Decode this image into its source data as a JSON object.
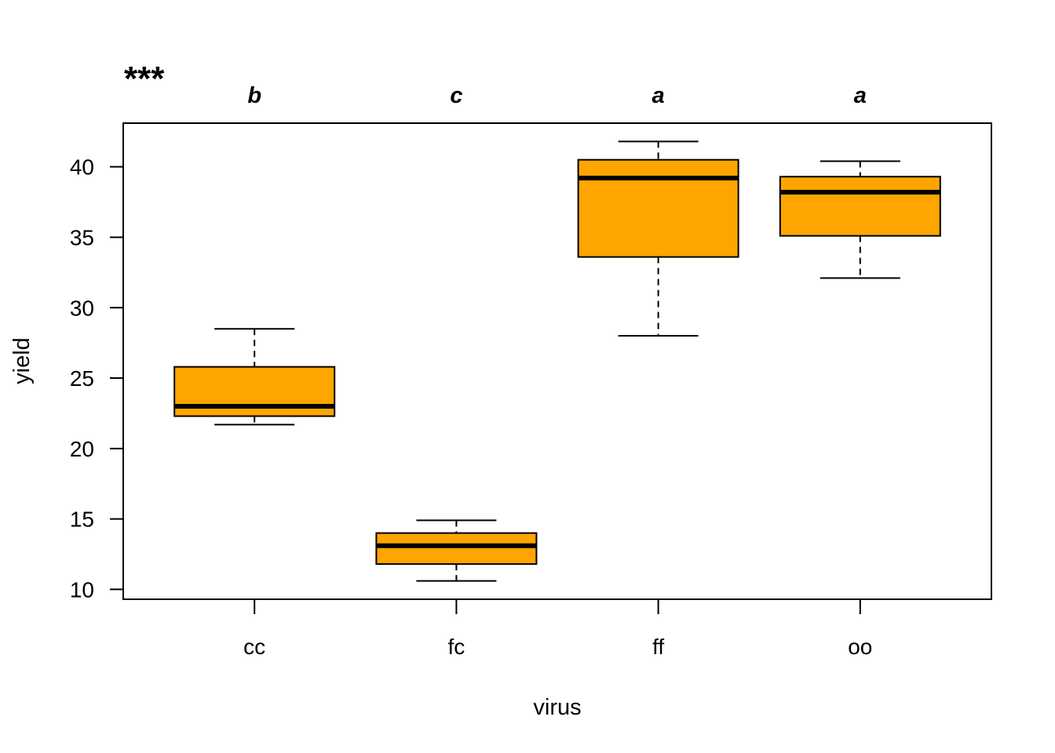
{
  "chart_data": {
    "type": "boxplot",
    "xlabel": "virus",
    "ylabel": "yield",
    "significance_label": "***",
    "categories": [
      "cc",
      "fc",
      "ff",
      "oo"
    ],
    "group_letters": [
      "b",
      "c",
      "a",
      "a"
    ],
    "boxes": [
      {
        "category": "cc",
        "min": 21.7,
        "q1": 22.3,
        "median": 23.0,
        "q3": 25.8,
        "max": 28.5
      },
      {
        "category": "fc",
        "min": 10.6,
        "q1": 11.8,
        "median": 13.1,
        "q3": 14.0,
        "max": 14.9
      },
      {
        "category": "ff",
        "min": 28.0,
        "q1": 33.6,
        "median": 39.2,
        "q3": 40.5,
        "max": 41.8
      },
      {
        "category": "oo",
        "min": 32.1,
        "q1": 35.1,
        "median": 38.2,
        "q3": 39.3,
        "max": 40.4
      }
    ],
    "ylim": [
      9.3,
      43.1
    ],
    "yticks": [
      "10",
      "15",
      "20",
      "25",
      "30",
      "35",
      "40"
    ],
    "box_color": "#FFA500",
    "grid": false,
    "legend": false
  }
}
